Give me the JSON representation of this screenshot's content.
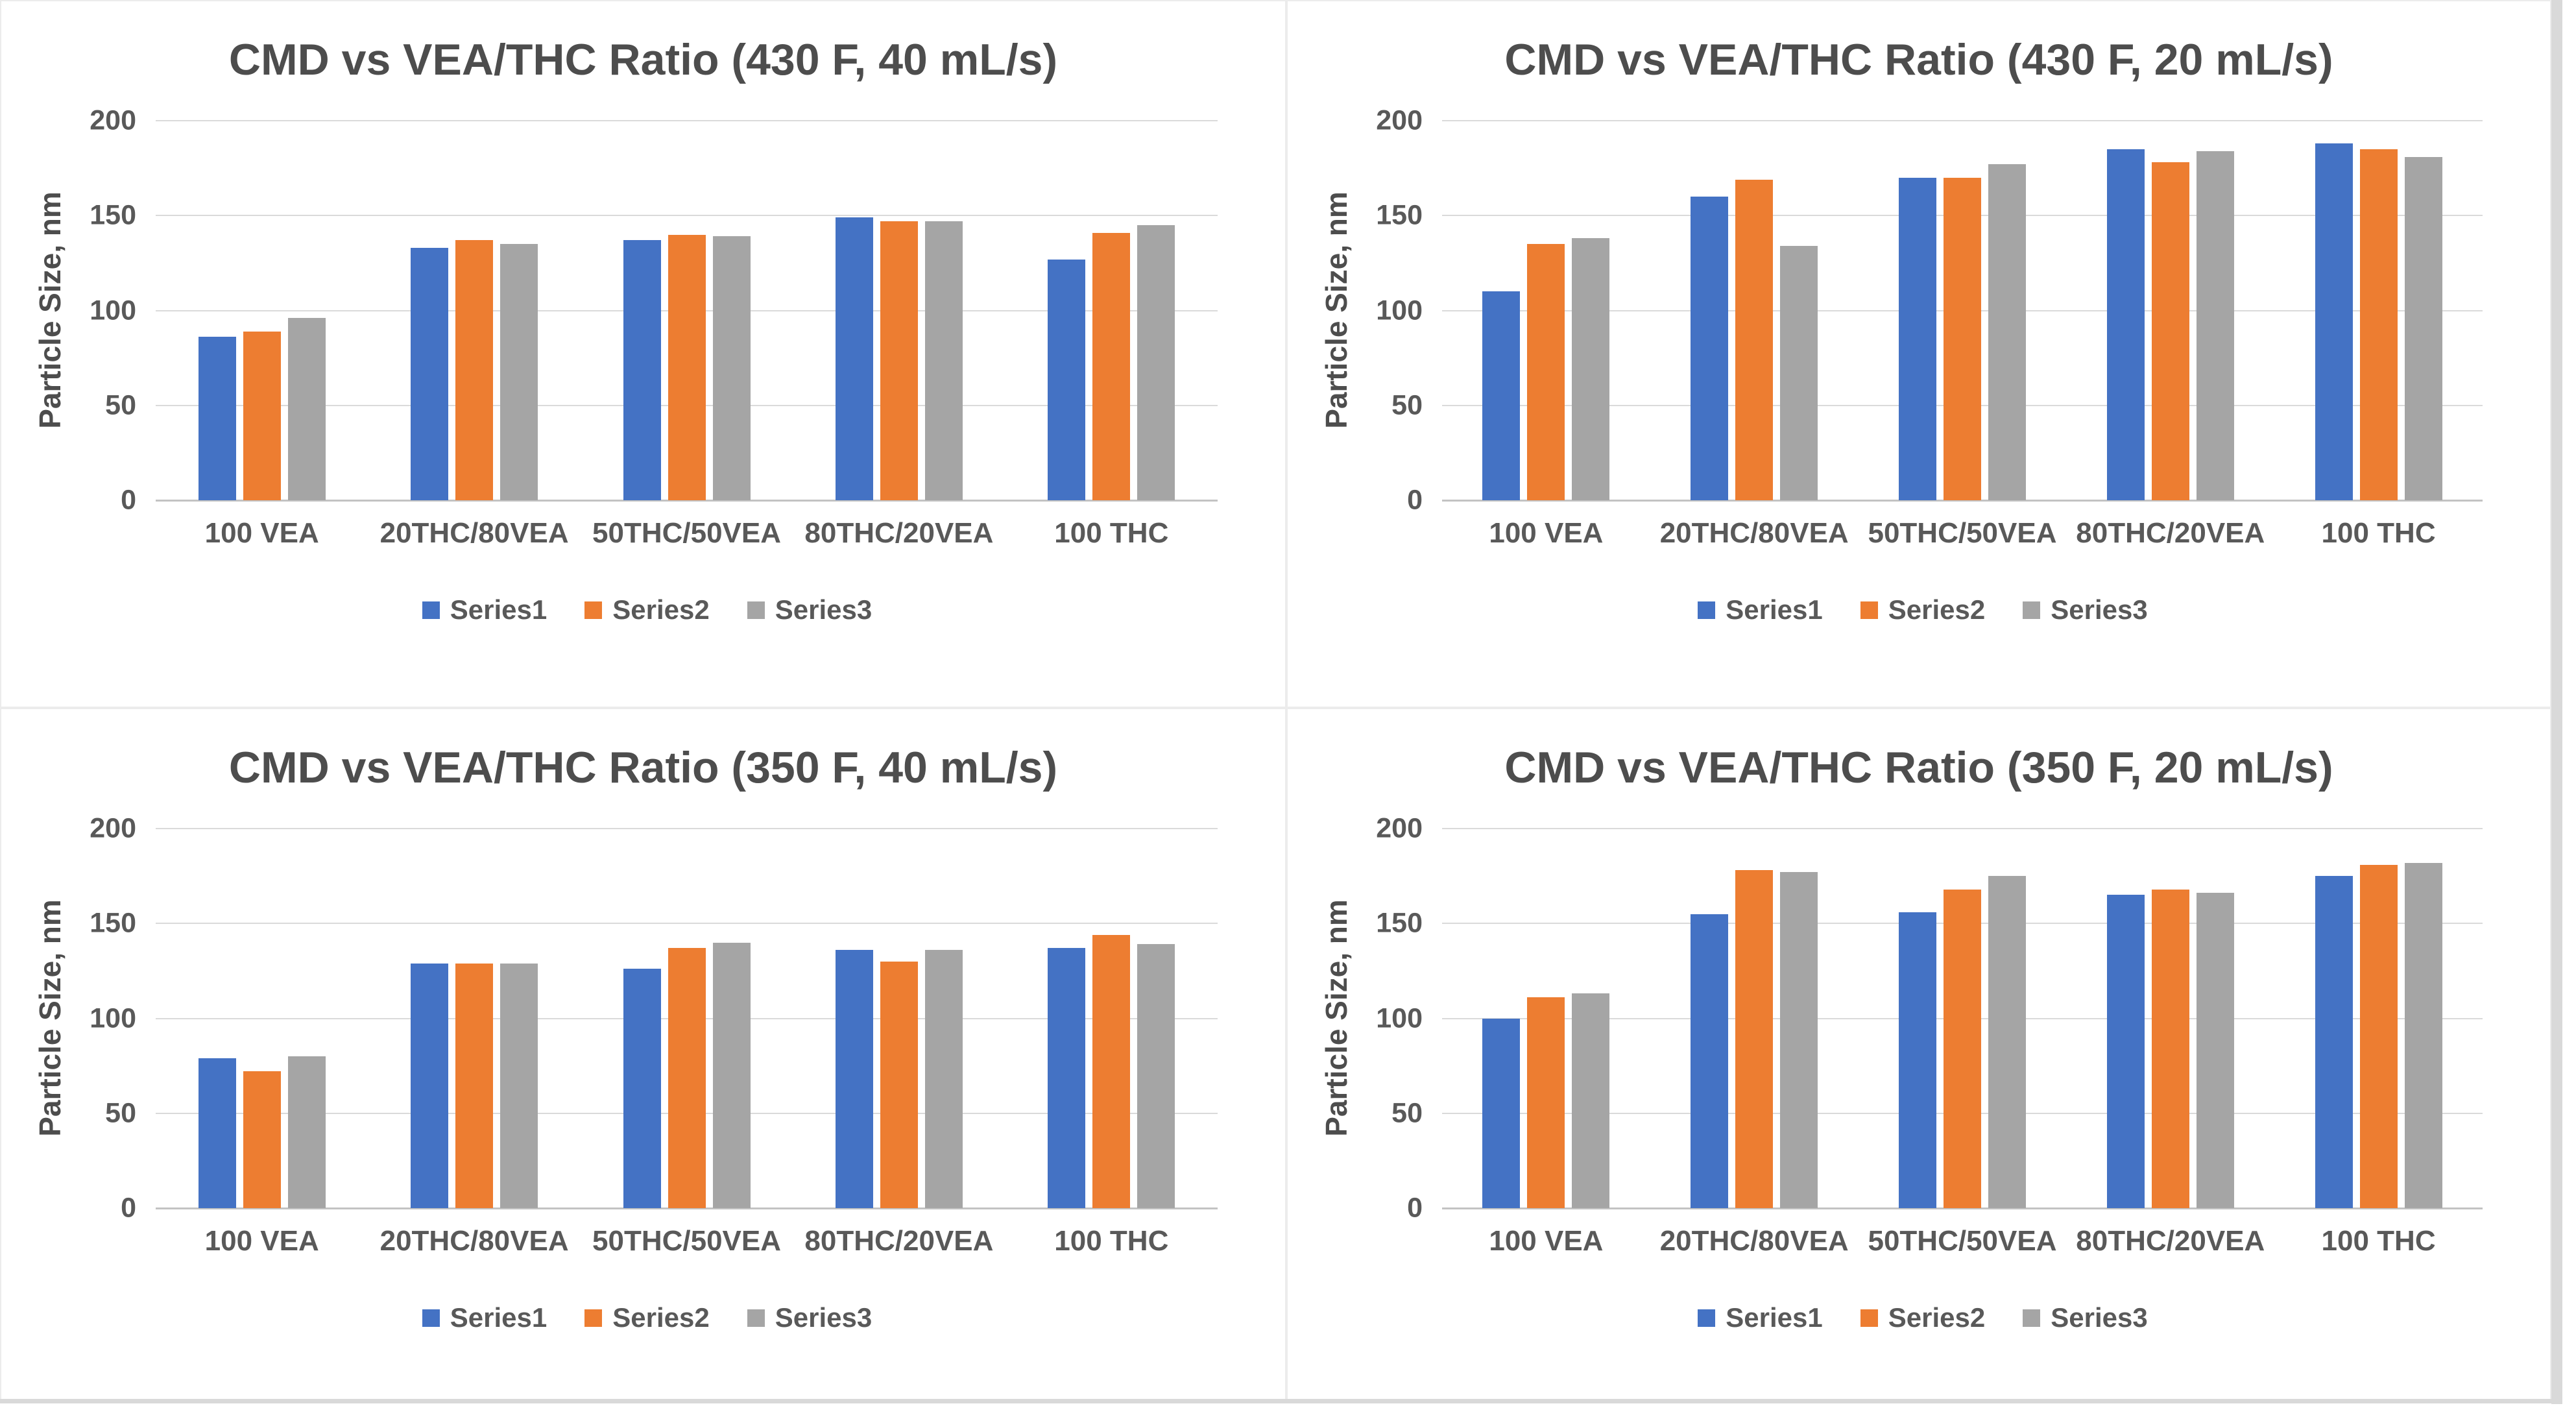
{
  "page": {
    "colors": {
      "series1": "#4472C4",
      "series2": "#ED7D31",
      "series3": "#A5A5A5",
      "title_text": "#4d4d4d",
      "axis_text": "#595959",
      "gridline": "#dadada",
      "baseline": "#c3c3c3",
      "panel_border": "#ececec",
      "edge_strip": "#d9d9d9"
    }
  },
  "axis": {
    "ylabel": "Particle Size, nm",
    "ticks": [
      0,
      50,
      100,
      150,
      200
    ],
    "ymax": 200
  },
  "legend": {
    "items": [
      {
        "label": "Series1",
        "color": "#4472C4"
      },
      {
        "label": "Series2",
        "color": "#ED7D31"
      },
      {
        "label": "Series3",
        "color": "#A5A5A5"
      }
    ]
  },
  "chart_data": [
    {
      "type": "bar",
      "title": "CMD vs VEA/THC Ratio (430 F, 40 mL/s)",
      "xlabel": "",
      "ylabel": "Particle Size, nm",
      "ylim": [
        0,
        200
      ],
      "yticks": [
        0,
        50,
        100,
        150,
        200
      ],
      "grid": true,
      "legend_position": "bottom",
      "categories": [
        "100 VEA",
        "20THC/80VEA",
        "50THC/50VEA",
        "80THC/20VEA",
        "100 THC"
      ],
      "series": [
        {
          "name": "Series1",
          "color": "#4472C4",
          "values": [
            86,
            133,
            137,
            149,
            127
          ]
        },
        {
          "name": "Series2",
          "color": "#ED7D31",
          "values": [
            89,
            137,
            140,
            147,
            141
          ]
        },
        {
          "name": "Series3",
          "color": "#A5A5A5",
          "values": [
            96,
            135,
            139,
            147,
            145
          ]
        }
      ]
    },
    {
      "type": "bar",
      "title": "CMD vs VEA/THC Ratio (430 F, 20 mL/s)",
      "xlabel": "",
      "ylabel": "Particle Size, nm",
      "ylim": [
        0,
        200
      ],
      "yticks": [
        0,
        50,
        100,
        150,
        200
      ],
      "grid": true,
      "legend_position": "bottom",
      "categories": [
        "100 VEA",
        "20THC/80VEA",
        "50THC/50VEA",
        "80THC/20VEA",
        "100 THC"
      ],
      "series": [
        {
          "name": "Series1",
          "color": "#4472C4",
          "values": [
            110,
            160,
            170,
            185,
            188
          ]
        },
        {
          "name": "Series2",
          "color": "#ED7D31",
          "values": [
            135,
            169,
            170,
            178,
            185
          ]
        },
        {
          "name": "Series3",
          "color": "#A5A5A5",
          "values": [
            138,
            134,
            177,
            184,
            181
          ]
        }
      ]
    },
    {
      "type": "bar",
      "title": "CMD vs VEA/THC Ratio (350 F, 40 mL/s)",
      "xlabel": "",
      "ylabel": "Particle Size, nm",
      "ylim": [
        0,
        200
      ],
      "yticks": [
        0,
        50,
        100,
        150,
        200
      ],
      "grid": true,
      "legend_position": "bottom",
      "categories": [
        "100 VEA",
        "20THC/80VEA",
        "50THC/50VEA",
        "80THC/20VEA",
        "100 THC"
      ],
      "series": [
        {
          "name": "Series1",
          "color": "#4472C4",
          "values": [
            79,
            129,
            126,
            136,
            137
          ]
        },
        {
          "name": "Series2",
          "color": "#ED7D31",
          "values": [
            72,
            129,
            137,
            130,
            144
          ]
        },
        {
          "name": "Series3",
          "color": "#A5A5A5",
          "values": [
            80,
            129,
            140,
            136,
            139
          ]
        }
      ]
    },
    {
      "type": "bar",
      "title": "CMD vs VEA/THC Ratio (350 F, 20 mL/s)",
      "xlabel": "",
      "ylabel": "Particle Size, nm",
      "ylim": [
        0,
        200
      ],
      "yticks": [
        0,
        50,
        100,
        150,
        200
      ],
      "grid": true,
      "legend_position": "bottom",
      "categories": [
        "100 VEA",
        "20THC/80VEA",
        "50THC/50VEA",
        "80THC/20VEA",
        "100 THC"
      ],
      "series": [
        {
          "name": "Series1",
          "color": "#4472C4",
          "values": [
            100,
            155,
            156,
            165,
            175
          ]
        },
        {
          "name": "Series2",
          "color": "#ED7D31",
          "values": [
            111,
            178,
            168,
            168,
            181
          ]
        },
        {
          "name": "Series3",
          "color": "#A5A5A5",
          "values": [
            113,
            177,
            175,
            166,
            182
          ]
        }
      ]
    }
  ]
}
